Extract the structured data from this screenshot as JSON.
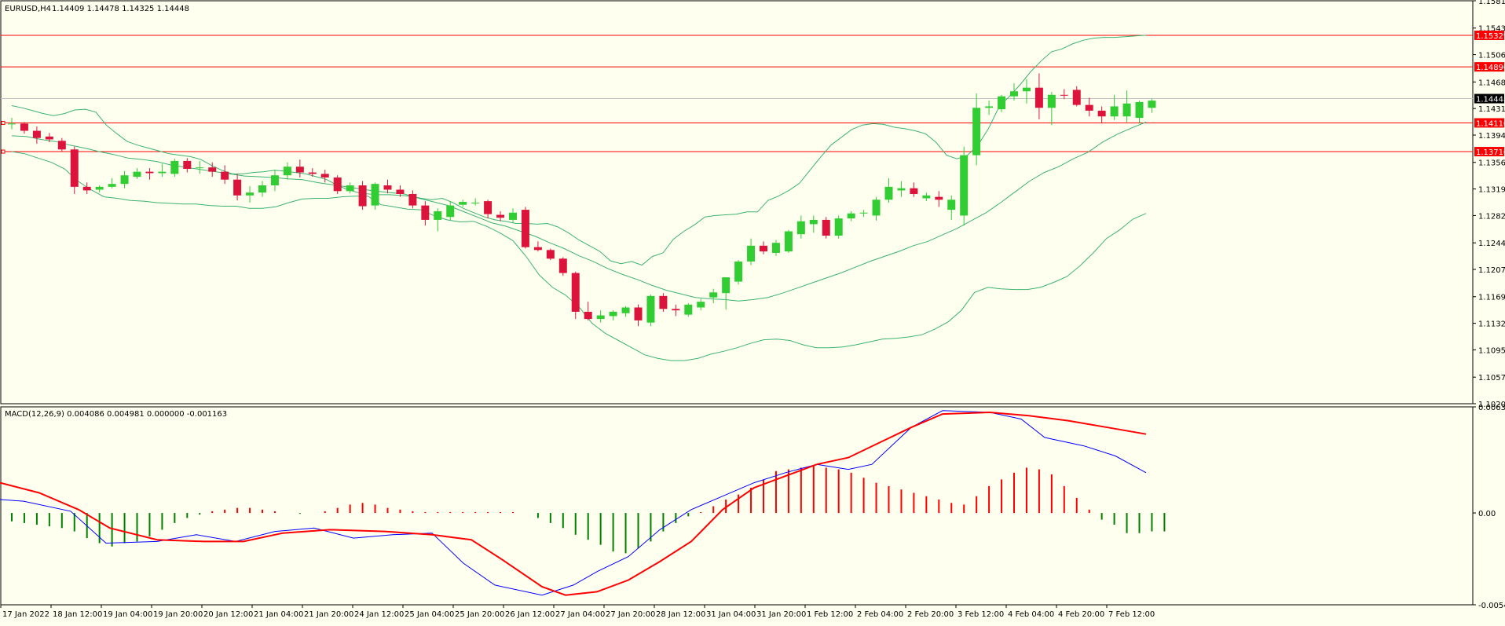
{
  "chart_data": [
    {
      "type": "candlestick",
      "title": "EURUSD,H4",
      "ohlc_summary": "1.14409 1.14478 1.14325 1.14448",
      "y_ticks": [
        "1.15810",
        "1.15430",
        "1.15060",
        "1.14680",
        "1.14310",
        "1.13940",
        "1.13560",
        "1.13190",
        "1.12820",
        "1.12440",
        "1.12070",
        "1.11690",
        "1.11320",
        "1.10950",
        "1.10570",
        "1.10200"
      ],
      "ylim": [
        1.102,
        1.1581
      ],
      "x_tick_labels": [
        "17 Jan 2022",
        "18 Jan 12:00",
        "19 Jan 04:00",
        "19 Jan 20:00",
        "20 Jan 12:00",
        "21 Jan 04:00",
        "21 Jan 20:00",
        "24 Jan 12:00",
        "25 Jan 04:00",
        "25 Jan 20:00",
        "26 Jan 12:00",
        "27 Jan 04:00",
        "27 Jan 20:00",
        "28 Jan 12:00",
        "31 Jan 04:00",
        "31 Jan 20:00",
        "1 Feb 12:00",
        "2 Feb 04:00",
        "2 Feb 20:00",
        "3 Feb 12:00",
        "4 Feb 04:00",
        "4 Feb 20:00",
        "7 Feb 12:00"
      ],
      "price_lines": [
        {
          "label": "1.15329",
          "value": 1.15329,
          "color": "#ff0000"
        },
        {
          "label": "1.14890",
          "value": 1.1489,
          "color": "#ff0000"
        },
        {
          "label": "1.14110",
          "value": 1.1411,
          "color": "#ff0000"
        },
        {
          "label": "1.13710",
          "value": 1.1371,
          "color": "#ff0000"
        }
      ],
      "current_price": {
        "label": "1.14448",
        "value": 1.14448
      },
      "bull_color": "#32cd32",
      "bear_color": "#dc143c",
      "band_color": "#3cb371",
      "candles": [
        [
          1.1409,
          1.1418,
          1.1402,
          1.141
        ],
        [
          1.141,
          1.1412,
          1.1396,
          1.14
        ],
        [
          1.14,
          1.1406,
          1.1382,
          1.139
        ],
        [
          1.1392,
          1.1397,
          1.1384,
          1.1388
        ],
        [
          1.1386,
          1.139,
          1.1371,
          1.1374
        ],
        [
          1.1374,
          1.1378,
          1.1312,
          1.1322
        ],
        [
          1.1322,
          1.1328,
          1.1312,
          1.1317
        ],
        [
          1.1318,
          1.1324,
          1.1314,
          1.1322
        ],
        [
          1.1322,
          1.1334,
          1.132,
          1.1326
        ],
        [
          1.1326,
          1.1344,
          1.132,
          1.1338
        ],
        [
          1.1336,
          1.1348,
          1.1333,
          1.1343
        ],
        [
          1.1343,
          1.1348,
          1.1332,
          1.1341
        ],
        [
          1.1341,
          1.1354,
          1.1336,
          1.1343
        ],
        [
          1.134,
          1.1361,
          1.1336,
          1.1358
        ],
        [
          1.1358,
          1.1362,
          1.1342,
          1.1347
        ],
        [
          1.1348,
          1.1358,
          1.134,
          1.1349
        ],
        [
          1.1349,
          1.1356,
          1.1336,
          1.1343
        ],
        [
          1.1343,
          1.1352,
          1.1326,
          1.1332
        ],
        [
          1.1332,
          1.134,
          1.1303,
          1.131
        ],
        [
          1.131,
          1.1323,
          1.13,
          1.1314
        ],
        [
          1.1314,
          1.133,
          1.1308,
          1.1324
        ],
        [
          1.1324,
          1.1346,
          1.1316,
          1.1338
        ],
        [
          1.1338,
          1.1356,
          1.1332,
          1.135
        ],
        [
          1.135,
          1.136,
          1.1335,
          1.1342
        ],
        [
          1.1342,
          1.1348,
          1.1336,
          1.134
        ],
        [
          1.134,
          1.1346,
          1.1328,
          1.1335
        ],
        [
          1.1335,
          1.1338,
          1.1312,
          1.1316
        ],
        [
          1.1316,
          1.1328,
          1.1313,
          1.1324
        ],
        [
          1.1324,
          1.133,
          1.129,
          1.1295
        ],
        [
          1.1296,
          1.1328,
          1.129,
          1.1326
        ],
        [
          1.1324,
          1.1332,
          1.1313,
          1.1318
        ],
        [
          1.1318,
          1.1324,
          1.1308,
          1.1312
        ],
        [
          1.1312,
          1.1317,
          1.1292,
          1.1296
        ],
        [
          1.1296,
          1.1302,
          1.1268,
          1.1276
        ],
        [
          1.1276,
          1.1292,
          1.126,
          1.1288
        ],
        [
          1.128,
          1.1302,
          1.1276,
          1.1296
        ],
        [
          1.1297,
          1.1304,
          1.1294,
          1.1301
        ],
        [
          1.13,
          1.1306,
          1.1296,
          1.13
        ],
        [
          1.1302,
          1.1304,
          1.1278,
          1.1284
        ],
        [
          1.1283,
          1.1288,
          1.1274,
          1.1279
        ],
        [
          1.1276,
          1.1292,
          1.1272,
          1.1286
        ],
        [
          1.129,
          1.1294,
          1.1236,
          1.1238
        ],
        [
          1.1238,
          1.1246,
          1.1232,
          1.1234
        ],
        [
          1.1234,
          1.1236,
          1.122,
          1.1222
        ],
        [
          1.1222,
          1.1224,
          1.1198,
          1.1202
        ],
        [
          1.1202,
          1.1204,
          1.1138,
          1.1148
        ],
        [
          1.1148,
          1.1162,
          1.1136,
          1.1138
        ],
        [
          1.1138,
          1.115,
          1.1133,
          1.1143
        ],
        [
          1.1142,
          1.115,
          1.1136,
          1.1148
        ],
        [
          1.1146,
          1.1156,
          1.1141,
          1.1154
        ],
        [
          1.1154,
          1.1158,
          1.1128,
          1.1136
        ],
        [
          1.1133,
          1.1172,
          1.1128,
          1.117
        ],
        [
          1.117,
          1.1174,
          1.1148,
          1.1152
        ],
        [
          1.1152,
          1.1158,
          1.1142,
          1.115
        ],
        [
          1.1144,
          1.116,
          1.1141,
          1.1158
        ],
        [
          1.1154,
          1.1166,
          1.115,
          1.1162
        ],
        [
          1.1168,
          1.118,
          1.116,
          1.1175
        ],
        [
          1.1174,
          1.1194,
          1.1151,
          1.1196
        ],
        [
          1.119,
          1.122,
          1.1186,
          1.1218
        ],
        [
          1.1218,
          1.125,
          1.1213,
          1.124
        ],
        [
          1.124,
          1.1246,
          1.1228,
          1.1232
        ],
        [
          1.123,
          1.1248,
          1.1226,
          1.1244
        ],
        [
          1.1232,
          1.1262,
          1.123,
          1.126
        ],
        [
          1.1256,
          1.1282,
          1.125,
          1.1274
        ],
        [
          1.127,
          1.1282,
          1.1258,
          1.1276
        ],
        [
          1.1276,
          1.128,
          1.125,
          1.1254
        ],
        [
          1.1254,
          1.1282,
          1.125,
          1.1278
        ],
        [
          1.1278,
          1.1288,
          1.1274,
          1.1285
        ],
        [
          1.1285,
          1.129,
          1.128,
          1.1286
        ],
        [
          1.1282,
          1.1308,
          1.1275,
          1.1304
        ],
        [
          1.1304,
          1.1334,
          1.13,
          1.1322
        ],
        [
          1.1317,
          1.133,
          1.1308,
          1.132
        ],
        [
          1.132,
          1.1328,
          1.1308,
          1.1312
        ],
        [
          1.1306,
          1.1314,
          1.1302,
          1.131
        ],
        [
          1.1308,
          1.1316,
          1.1294,
          1.1304
        ],
        [
          1.129,
          1.131,
          1.1276,
          1.1304
        ],
        [
          1.1282,
          1.1378,
          1.1268,
          1.1366
        ],
        [
          1.1366,
          1.1452,
          1.1352,
          1.1432
        ],
        [
          1.1432,
          1.1442,
          1.1422,
          1.1434
        ],
        [
          1.143,
          1.145,
          1.1426,
          1.1448
        ],
        [
          1.1448,
          1.1466,
          1.1442,
          1.1455
        ],
        [
          1.1455,
          1.1472,
          1.1438,
          1.146
        ],
        [
          1.146,
          1.148,
          1.1416,
          1.1432
        ],
        [
          1.1432,
          1.1454,
          1.1408,
          1.145
        ],
        [
          1.145,
          1.1458,
          1.1444,
          1.1449
        ],
        [
          1.1457,
          1.1462,
          1.1434,
          1.1436
        ],
        [
          1.1436,
          1.1446,
          1.142,
          1.1428
        ],
        [
          1.1428,
          1.1434,
          1.141,
          1.142
        ],
        [
          1.142,
          1.145,
          1.1415,
          1.1434
        ],
        [
          1.142,
          1.1456,
          1.1412,
          1.1438
        ],
        [
          1.1418,
          1.1442,
          1.141,
          1.144
        ],
        [
          1.1432,
          1.1445,
          1.1425,
          1.1442
        ]
      ],
      "bb_upper": [
        1.1435,
        1.1432,
        1.1428,
        1.1424,
        1.1421,
        1.1424,
        1.1429,
        1.143,
        1.1426,
        1.1408,
        1.1396,
        1.1385,
        1.138,
        1.1376,
        1.1372,
        1.1368,
        1.1366,
        1.1364,
        1.136,
        1.1352,
        1.1345,
        1.134,
        1.134,
        1.1342,
        1.1343,
        1.1345,
        1.1344,
        1.1342,
        1.134,
        1.1336,
        1.1332,
        1.1324,
        1.1318,
        1.1314,
        1.1312,
        1.1311,
        1.1311,
        1.131,
        1.1309,
        1.1306,
        1.1304,
        1.1306,
        1.13,
        1.1292,
        1.1286,
        1.128,
        1.1276,
        1.1274,
        1.1271,
        1.1271,
        1.127,
        1.1271,
        1.1266,
        1.1258,
        1.1248,
        1.124,
        1.1232,
        1.1219,
        1.1215,
        1.1218,
        1.1213,
        1.1225,
        1.123,
        1.1249,
        1.126,
        1.1269,
        1.128,
        1.1282,
        1.1283,
        1.1284,
        1.1287,
        1.1287,
        1.1303,
        1.1309,
        1.1317,
        1.1327,
        1.1345,
        1.1363,
        1.138,
        1.1391,
        1.1402,
        1.1408,
        1.141,
        1.1409,
        1.1405,
        1.1403,
        1.14,
        1.1396,
        1.1384,
        1.1366,
        1.1361,
        1.1366,
        1.138,
        1.1403,
        1.1433,
        1.1448,
        1.1464,
        1.1482,
        1.1497,
        1.151,
        1.1514,
        1.1521,
        1.1526,
        1.1529,
        1.153,
        1.153,
        1.1531,
        1.1532,
        1.1533
      ],
      "bb_middle": [
        1.1393,
        1.1392,
        1.1388,
        1.1385,
        1.138,
        1.1376,
        1.1371,
        1.1367,
        1.1362,
        1.136,
        1.1357,
        1.1352,
        1.1349,
        1.1346,
        1.1343,
        1.134,
        1.1337,
        1.1336,
        1.1335,
        1.1333,
        1.1332,
        1.1328,
        1.1325,
        1.1322,
        1.1319,
        1.1316,
        1.1314,
        1.1312,
        1.1306,
        1.1301,
        1.1296,
        1.1288,
        1.128,
        1.1272,
        1.1267,
        1.126,
        1.1253,
        1.1244,
        1.1236,
        1.1226,
        1.1218,
        1.1208,
        1.12,
        1.1193,
        1.1185,
        1.1178,
        1.1173,
        1.1168,
        1.1166,
        1.1165,
        1.1163,
        1.1165,
        1.1168,
        1.1174,
        1.1181,
        1.1188,
        1.1195,
        1.1202,
        1.121,
        1.1218,
        1.1225,
        1.1232,
        1.124,
        1.1246,
        1.1255,
        1.1264,
        1.1275,
        1.1286,
        1.13,
        1.1315,
        1.133,
        1.1342,
        1.135,
        1.1361,
        1.137,
        1.1384,
        1.1395,
        1.1404,
        1.1412
      ],
      "bb_lower": [
        1.1371,
        1.1368,
        1.1362,
        1.1356,
        1.1347,
        1.133,
        1.1318,
        1.1308,
        1.1306,
        1.1303,
        1.1302,
        1.13,
        1.1299,
        1.1298,
        1.1298,
        1.1296,
        1.1295,
        1.1295,
        1.1292,
        1.1292,
        1.1294,
        1.13,
        1.1305,
        1.1306,
        1.1306,
        1.1308,
        1.1309,
        1.1309,
        1.1297,
        1.1294,
        1.1291,
        1.129,
        1.1282,
        1.1276,
        1.1273,
        1.1274,
        1.1267,
        1.1258,
        1.1247,
        1.1225,
        1.1199,
        1.1182,
        1.1171,
        1.1155,
        1.1132,
        1.1118,
        1.1108,
        1.1098,
        1.1088,
        1.1083,
        1.108,
        1.108,
        1.1083,
        1.1089,
        1.1093,
        1.1098,
        1.1104,
        1.1109,
        1.111,
        1.1108,
        1.1102,
        1.1098,
        1.1098,
        1.1099,
        1.1102,
        1.1106,
        1.111,
        1.1111,
        1.1113,
        1.1116,
        1.1124,
        1.1134,
        1.115,
        1.1175,
        1.1182,
        1.118,
        1.1179,
        1.1179,
        1.1182,
        1.1189,
        1.1197,
        1.1212,
        1.123,
        1.125,
        1.1262,
        1.1277,
        1.1285
      ]
    },
    {
      "type": "macd",
      "title": "MACD(12,26,9) 0.004086 0.004981 0.000000 -0.001163",
      "y_ticks": [
        "0.006326",
        "0.00",
        "-0.005476"
      ],
      "ylim": [
        -0.005476,
        0.006326
      ],
      "histogram": [
        -0.0005,
        -0.0006,
        -0.0007,
        -0.0008,
        -0.0009,
        -0.0011,
        -0.0015,
        -0.0018,
        -0.002,
        -0.0018,
        -0.0017,
        -0.0014,
        -0.001,
        -0.0006,
        -0.0003,
        -0.0001,
        0.0001,
        0.0002,
        0.0003,
        0.0003,
        0.0002,
        0.0001,
        0.0,
        -5e-05,
        0.0,
        0.0001,
        0.0003,
        0.0005,
        0.0006,
        0.0005,
        0.0003,
        0.0002,
        0.0001,
        5e-05,
        5e-05,
        5e-05,
        5e-05,
        5e-05,
        5e-05,
        5e-05,
        5e-05,
        0.0,
        -0.0003,
        -0.0006,
        -0.0009,
        -0.0013,
        -0.0016,
        -0.0019,
        -0.0023,
        -0.0024,
        -0.0021,
        -0.0017,
        -0.0011,
        -0.0006,
        -0.0002,
        5e-05,
        0.0004,
        0.0008,
        0.0011,
        0.0015,
        0.002,
        0.0025,
        0.0026,
        0.0027,
        0.0028,
        0.0027,
        0.0026,
        0.0024,
        0.0021,
        0.0018,
        0.0016,
        0.0014,
        0.0012,
        0.001,
        0.0008,
        0.0006,
        0.0005,
        0.001,
        0.0016,
        0.002,
        0.0024,
        0.0027,
        0.0026,
        0.0023,
        0.0016,
        0.0009,
        0.0002,
        -0.0004,
        -0.0007,
        -0.0012,
        -0.0012,
        -0.0011,
        -0.0011
      ],
      "macd": [
        [
          0,
          0.0008
        ],
        [
          30,
          0.0007
        ],
        [
          90,
          0.0001
        ],
        [
          135,
          -0.0018
        ],
        [
          200,
          -0.0017
        ],
        [
          250,
          -0.0013
        ],
        [
          300,
          -0.0017
        ],
        [
          350,
          -0.0011
        ],
        [
          400,
          -0.0009
        ],
        [
          450,
          -0.0015
        ],
        [
          500,
          -0.0013
        ],
        [
          550,
          -0.0012
        ],
        [
          590,
          -0.003
        ],
        [
          630,
          -0.0043
        ],
        [
          690,
          -0.0049
        ],
        [
          730,
          -0.0043
        ],
        [
          760,
          -0.0035
        ],
        [
          800,
          -0.0026
        ],
        [
          840,
          -0.001
        ],
        [
          880,
          0.0002
        ],
        [
          920,
          0.001
        ],
        [
          960,
          0.0018
        ],
        [
          1000,
          0.0024
        ],
        [
          1040,
          0.0029
        ],
        [
          1080,
          0.0026
        ],
        [
          1110,
          0.0029
        ],
        [
          1160,
          0.0051
        ],
        [
          1200,
          0.0061
        ],
        [
          1260,
          0.006
        ],
        [
          1300,
          0.0056
        ],
        [
          1330,
          0.0045
        ],
        [
          1380,
          0.004
        ],
        [
          1420,
          0.0034
        ],
        [
          1459,
          0.0024
        ]
      ],
      "signal": [
        [
          0,
          0.0018
        ],
        [
          50,
          0.0012
        ],
        [
          100,
          0.0002
        ],
        [
          140,
          -0.0009
        ],
        [
          200,
          -0.0016
        ],
        [
          260,
          -0.0017
        ],
        [
          310,
          -0.0017
        ],
        [
          360,
          -0.0012
        ],
        [
          420,
          -0.001
        ],
        [
          490,
          -0.0011
        ],
        [
          550,
          -0.0013
        ],
        [
          600,
          -0.0016
        ],
        [
          640,
          -0.0028
        ],
        [
          690,
          -0.0044
        ],
        [
          720,
          -0.0049
        ],
        [
          760,
          -0.0047
        ],
        [
          800,
          -0.004
        ],
        [
          840,
          -0.0029
        ],
        [
          880,
          -0.0017
        ],
        [
          920,
          0.0002
        ],
        [
          960,
          0.0015
        ],
        [
          1000,
          0.0022
        ],
        [
          1040,
          0.0029
        ],
        [
          1080,
          0.0033
        ],
        [
          1120,
          0.0042
        ],
        [
          1160,
          0.0051
        ],
        [
          1200,
          0.0059
        ],
        [
          1260,
          0.006
        ],
        [
          1310,
          0.0058
        ],
        [
          1360,
          0.0055
        ],
        [
          1410,
          0.0051
        ],
        [
          1459,
          0.0047
        ]
      ]
    }
  ]
}
